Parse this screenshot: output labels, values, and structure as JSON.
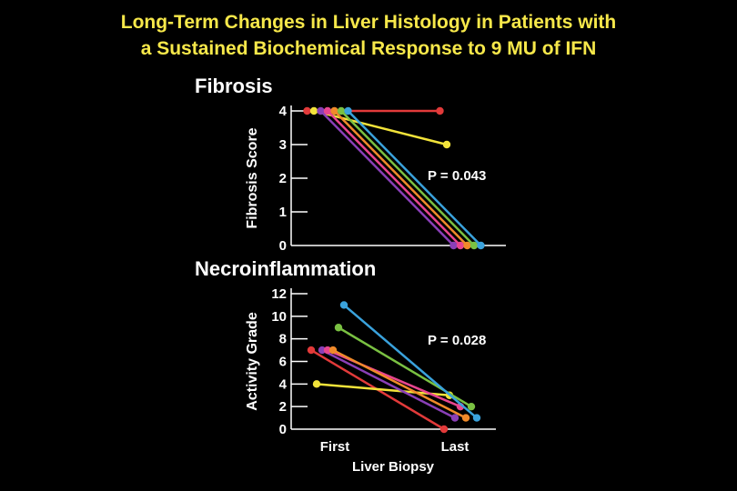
{
  "title_line1": "Long-Term Changes in Liver Histology in Patients with",
  "title_line2": "a Sustained Biochemical Response to 9 MU of IFN",
  "colors": {
    "background": "#000000",
    "title": "#f7e84a",
    "axes": "#ffffff",
    "series": [
      "#e23a3a",
      "#f2e33a",
      "#8a3fb7",
      "#e8458f",
      "#f08a2a",
      "#7ac142",
      "#3aa2dc"
    ]
  },
  "chart_data": [
    {
      "type": "line",
      "title": "Fibrosis",
      "ylabel": "Fibrosis Score",
      "xlabel": "",
      "categories": [
        "First",
        "Last"
      ],
      "ylim": [
        0,
        4
      ],
      "yticks": [
        "0",
        "1",
        "2",
        "3",
        "4"
      ],
      "annotation": "P = 0.043",
      "series": [
        {
          "values": [
            4,
            4
          ]
        },
        {
          "values": [
            4,
            3
          ]
        },
        {
          "values": [
            4,
            0
          ]
        },
        {
          "values": [
            4,
            0
          ]
        },
        {
          "values": [
            4,
            0
          ]
        },
        {
          "values": [
            4,
            0
          ]
        },
        {
          "values": [
            4,
            0
          ]
        }
      ]
    },
    {
      "type": "line",
      "title": "Necroinflammation",
      "ylabel": "Activity Grade",
      "xlabel": "Liver Biopsy",
      "categories": [
        "First",
        "Last"
      ],
      "ylim": [
        0,
        12
      ],
      "yticks": [
        "0",
        "2",
        "4",
        "6",
        "8",
        "10",
        "12"
      ],
      "annotation": "P = 0.028",
      "series": [
        {
          "values": [
            7,
            0
          ]
        },
        {
          "values": [
            4,
            3
          ]
        },
        {
          "values": [
            7,
            1
          ]
        },
        {
          "values": [
            7,
            2
          ]
        },
        {
          "values": [
            7,
            1
          ]
        },
        {
          "values": [
            9,
            2
          ]
        },
        {
          "values": [
            11,
            1
          ]
        }
      ]
    }
  ]
}
